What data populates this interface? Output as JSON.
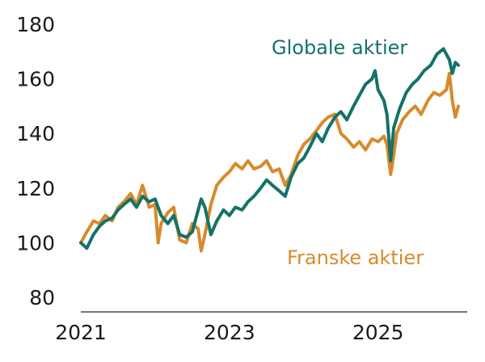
{
  "chart_data": {
    "type": "line",
    "title": "",
    "xlabel": "",
    "ylabel": "",
    "xlim": [
      2021.0,
      2026.2
    ],
    "ylim": [
      80,
      180
    ],
    "y_ticks": [
      80,
      100,
      120,
      140,
      160,
      180
    ],
    "x_ticks": [
      {
        "value": 2021,
        "label": "2021"
      },
      {
        "value": 2023,
        "label": "2023"
      },
      {
        "value": 2025,
        "label": "2025"
      }
    ],
    "grid": false,
    "legend": "direct labels on chart",
    "series": [
      {
        "name": "Globale aktier",
        "color": "#147268",
        "points": [
          [
            2021.0,
            100
          ],
          [
            2021.08,
            98
          ],
          [
            2021.17,
            103
          ],
          [
            2021.25,
            106
          ],
          [
            2021.33,
            108
          ],
          [
            2021.42,
            109
          ],
          [
            2021.5,
            112
          ],
          [
            2021.58,
            114
          ],
          [
            2021.67,
            116
          ],
          [
            2021.75,
            113
          ],
          [
            2021.83,
            117
          ],
          [
            2021.92,
            115
          ],
          [
            2022.0,
            116
          ],
          [
            2022.08,
            110
          ],
          [
            2022.17,
            107
          ],
          [
            2022.25,
            110
          ],
          [
            2022.33,
            103
          ],
          [
            2022.42,
            102
          ],
          [
            2022.5,
            104
          ],
          [
            2022.58,
            112
          ],
          [
            2022.62,
            116
          ],
          [
            2022.67,
            113
          ],
          [
            2022.75,
            103
          ],
          [
            2022.83,
            108
          ],
          [
            2022.92,
            112
          ],
          [
            2023.0,
            110
          ],
          [
            2023.08,
            113
          ],
          [
            2023.17,
            112
          ],
          [
            2023.25,
            115
          ],
          [
            2023.33,
            117
          ],
          [
            2023.42,
            120
          ],
          [
            2023.5,
            123
          ],
          [
            2023.58,
            121
          ],
          [
            2023.67,
            119
          ],
          [
            2023.75,
            117
          ],
          [
            2023.83,
            124
          ],
          [
            2023.92,
            129
          ],
          [
            2024.0,
            131
          ],
          [
            2024.08,
            135
          ],
          [
            2024.17,
            140
          ],
          [
            2024.25,
            137
          ],
          [
            2024.33,
            142
          ],
          [
            2024.42,
            146
          ],
          [
            2024.5,
            148
          ],
          [
            2024.58,
            145
          ],
          [
            2024.67,
            150
          ],
          [
            2024.75,
            154
          ],
          [
            2024.83,
            158
          ],
          [
            2024.92,
            160
          ],
          [
            2024.96,
            163
          ],
          [
            2025.0,
            156
          ],
          [
            2025.08,
            152
          ],
          [
            2025.12,
            147
          ],
          [
            2025.17,
            130
          ],
          [
            2025.21,
            142
          ],
          [
            2025.29,
            149
          ],
          [
            2025.38,
            155
          ],
          [
            2025.46,
            158
          ],
          [
            2025.54,
            160
          ],
          [
            2025.62,
            163
          ],
          [
            2025.71,
            165
          ],
          [
            2025.79,
            169
          ],
          [
            2025.88,
            171
          ],
          [
            2025.96,
            167
          ],
          [
            2026.0,
            162
          ],
          [
            2026.04,
            166
          ],
          [
            2026.08,
            165
          ]
        ]
      },
      {
        "name": "Franske aktier",
        "color": "#d88a2b",
        "points": [
          [
            2021.0,
            100
          ],
          [
            2021.08,
            104
          ],
          [
            2021.17,
            108
          ],
          [
            2021.25,
            107
          ],
          [
            2021.33,
            110
          ],
          [
            2021.42,
            108
          ],
          [
            2021.5,
            113
          ],
          [
            2021.58,
            115
          ],
          [
            2021.67,
            118
          ],
          [
            2021.75,
            114
          ],
          [
            2021.83,
            121
          ],
          [
            2021.92,
            113
          ],
          [
            2022.0,
            114
          ],
          [
            2022.04,
            100
          ],
          [
            2022.08,
            107
          ],
          [
            2022.17,
            111
          ],
          [
            2022.25,
            113
          ],
          [
            2022.33,
            101
          ],
          [
            2022.42,
            100
          ],
          [
            2022.5,
            107
          ],
          [
            2022.58,
            105
          ],
          [
            2022.62,
            97
          ],
          [
            2022.67,
            103
          ],
          [
            2022.75,
            114
          ],
          [
            2022.83,
            121
          ],
          [
            2022.92,
            124
          ],
          [
            2023.0,
            126
          ],
          [
            2023.08,
            129
          ],
          [
            2023.17,
            127
          ],
          [
            2023.25,
            130
          ],
          [
            2023.33,
            127
          ],
          [
            2023.42,
            128
          ],
          [
            2023.5,
            130
          ],
          [
            2023.58,
            126
          ],
          [
            2023.67,
            127
          ],
          [
            2023.75,
            121
          ],
          [
            2023.83,
            125
          ],
          [
            2023.92,
            132
          ],
          [
            2024.0,
            136
          ],
          [
            2024.08,
            138
          ],
          [
            2024.17,
            141
          ],
          [
            2024.25,
            144
          ],
          [
            2024.33,
            146
          ],
          [
            2024.42,
            147
          ],
          [
            2024.5,
            140
          ],
          [
            2024.58,
            138
          ],
          [
            2024.67,
            135
          ],
          [
            2024.75,
            137
          ],
          [
            2024.83,
            134
          ],
          [
            2024.92,
            138
          ],
          [
            2025.0,
            137
          ],
          [
            2025.08,
            139
          ],
          [
            2025.12,
            136
          ],
          [
            2025.17,
            125
          ],
          [
            2025.21,
            132
          ],
          [
            2025.25,
            140
          ],
          [
            2025.33,
            145
          ],
          [
            2025.42,
            148
          ],
          [
            2025.5,
            150
          ],
          [
            2025.58,
            147
          ],
          [
            2025.67,
            152
          ],
          [
            2025.75,
            155
          ],
          [
            2025.83,
            154
          ],
          [
            2025.92,
            156
          ],
          [
            2025.96,
            162
          ],
          [
            2026.0,
            152
          ],
          [
            2026.04,
            146
          ],
          [
            2026.08,
            150
          ]
        ]
      }
    ]
  }
}
